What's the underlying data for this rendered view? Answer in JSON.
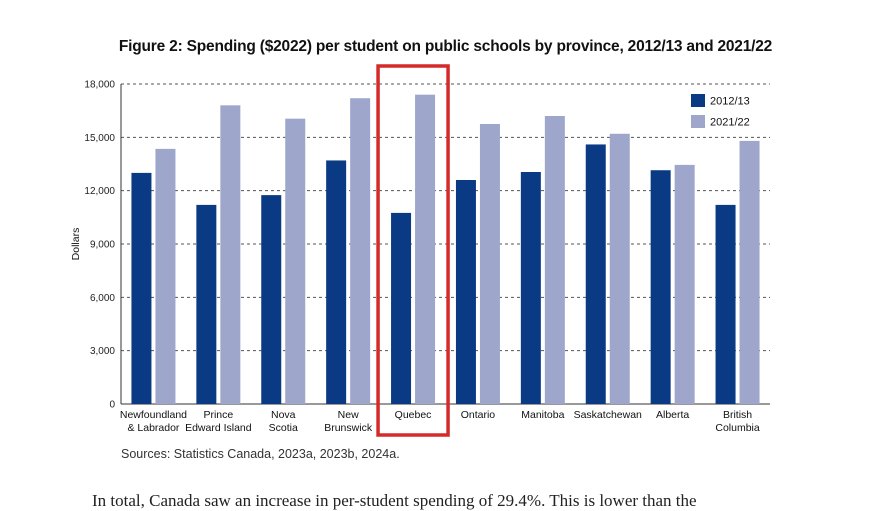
{
  "chart_data": {
    "type": "bar",
    "title": "Figure 2: Spending ($2022) per student on public schools by province, 2012/13 and 2021/22",
    "ylabel": "Dollars",
    "xlabel": "",
    "ylim": [
      0,
      18000
    ],
    "yticks": [
      0,
      3000,
      6000,
      9000,
      12000,
      15000,
      18000
    ],
    "ytick_labels": [
      "0",
      "3,000",
      "6,000",
      "9,000",
      "12,000",
      "15,000",
      "18,000"
    ],
    "grid": "horizontal dashed",
    "legend_position": "top-right",
    "categories": [
      [
        "Newfoundland",
        "& Labrador"
      ],
      [
        "Prince",
        "Edward Island"
      ],
      [
        "Nova",
        "Scotia"
      ],
      [
        "New",
        "Brunswick"
      ],
      [
        "Quebec"
      ],
      [
        "Ontario"
      ],
      [
        "Manitoba"
      ],
      [
        "Saskatchewan"
      ],
      [
        "Alberta"
      ],
      [
        "British",
        "Columbia"
      ]
    ],
    "series": [
      {
        "name": "2012/13",
        "color": "#0b3a85",
        "values": [
          13000,
          11200,
          11750,
          13700,
          10750,
          12600,
          13050,
          14600,
          13150,
          11200
        ]
      },
      {
        "name": "2021/22",
        "color": "#9ea6cc",
        "values": [
          14350,
          16800,
          16050,
          17200,
          17400,
          15750,
          16200,
          15200,
          13450,
          14800
        ]
      }
    ],
    "highlight_category_index": 4,
    "highlight_color": "#d42a2a"
  },
  "source_note": "Sources: Statistics Canada, 2023a, 2023b, 2024a.",
  "body_text": "In total, Canada saw an increase in per-student spending of 29.4%. This is lower than the"
}
